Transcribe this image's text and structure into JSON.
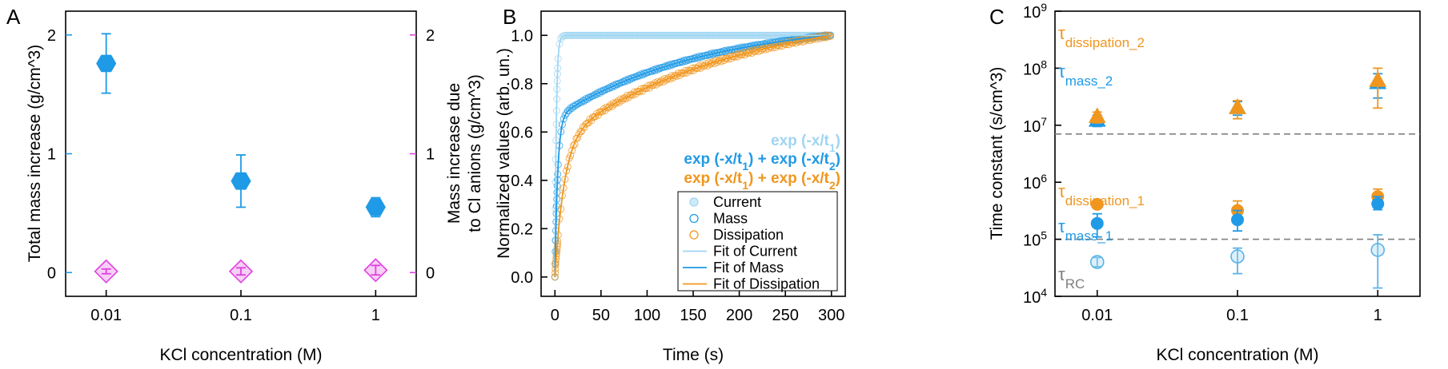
{
  "panels": {
    "a": "A",
    "b": "B",
    "c": "C"
  },
  "chart_data": [
    {
      "type": "scatter",
      "xlabel": "KCl concentration (M)",
      "ylabel": "Total mass increase (g/cm^3)",
      "ylabel_right_line1": "Mass increase due",
      "ylabel_right_line2": "to Cl anions (g/cm^3)",
      "x_scale": "log",
      "xlim": [
        0.005,
        2
      ],
      "ylim": [
        -0.2,
        2.2
      ],
      "x_ticks": [
        "0.01",
        "0.1",
        "1"
      ],
      "y_ticks": [
        "0",
        "1",
        "2"
      ],
      "y2_ticks": [
        "0",
        "1",
        "2"
      ],
      "colors": {
        "left": "#1f9ae6",
        "right": "#e040e0"
      },
      "series": [
        {
          "axis": "left",
          "marker": "hexagon",
          "x": [
            0.01,
            0.1,
            1
          ],
          "y": [
            1.76,
            0.77,
            0.55
          ],
          "err": [
            0.25,
            0.22,
            0.08
          ]
        },
        {
          "axis": "right",
          "marker": "diamond",
          "x": [
            0.01,
            0.1,
            1
          ],
          "y": [
            0.01,
            0.01,
            0.02
          ],
          "err": [
            0.02,
            0.03,
            0.04
          ]
        }
      ]
    },
    {
      "type": "scatter",
      "xlabel": "Time (s)",
      "ylabel": "Normalized values (arb. un.)",
      "xlim": [
        -15,
        315
      ],
      "ylim": [
        -0.08,
        1.1
      ],
      "x_ticks": [
        "0",
        "50",
        "100",
        "150",
        "200",
        "250",
        "300"
      ],
      "y_ticks": [
        "0.0",
        "0.2",
        "0.4",
        "0.6",
        "0.8",
        "1.0"
      ],
      "equations": [
        {
          "color": "#9fd5f2",
          "base": "exp (-x/t",
          "sub": "1",
          "tail": ")"
        },
        {
          "color": "#1f9ae6",
          "base": "exp (-x/t",
          "sub": "1",
          "mid": ") + exp (-x/t",
          "sub2": "2",
          "tail": ")"
        },
        {
          "color": "#f0961e",
          "base": "exp (-x/t",
          "sub": "1",
          "mid": ") + exp (-x/t",
          "sub2": "2",
          "tail": ")"
        }
      ],
      "legend": [
        "Current",
        "Mass",
        "Dissipation",
        "Fit of Current",
        "Fit of Mass",
        "Fit of Dissipation"
      ],
      "legend_position": "bottom-right",
      "colors": {
        "current": "#9fd5f2",
        "mass": "#1f9ae6",
        "dissipation": "#f0961e"
      },
      "series": [
        {
          "name": "Current",
          "model": {
            "a1": 1.0,
            "t1": 1.5,
            "a2": 0,
            "t2": 1
          }
        },
        {
          "name": "Mass",
          "model": {
            "a1": 0.62,
            "t1": 3,
            "a2": 0.38,
            "t2": 160
          }
        },
        {
          "name": "Dissipation",
          "model": {
            "a1": 0.5,
            "t1": 10,
            "a2": 0.5,
            "t2": 200
          }
        }
      ]
    },
    {
      "type": "scatter",
      "xlabel": "KCl concentration (M)",
      "ylabel": "Time constant (s/cm^3)",
      "x_scale": "log",
      "y_scale": "log",
      "xlim": [
        0.005,
        2
      ],
      "ylim": [
        10000,
        1000000000
      ],
      "x_ticks": [
        "0.01",
        "0.1",
        "1"
      ],
      "y_tick_exponents": [
        "4",
        "5",
        "6",
        "7",
        "8",
        "9"
      ],
      "y_tick_base": "10",
      "reference_lines": [
        100000,
        7000000
      ],
      "annotations": [
        {
          "base": "τ",
          "sub": "dissipation_2",
          "color": "#f0961e"
        },
        {
          "base": "τ",
          "sub": "mass_2",
          "color": "#1f9ae6"
        },
        {
          "base": "τ",
          "sub": "dissipation_1",
          "color": "#f0961e"
        },
        {
          "base": "τ",
          "sub": "mass_1",
          "color": "#1f9ae6"
        },
        {
          "base": "τ",
          "sub": "RC",
          "color": "#7f7f7f"
        }
      ],
      "series": [
        {
          "marker": "triangle",
          "color": "#1f9ae6",
          "x": [
            0.01,
            0.1,
            1
          ],
          "y": [
            12000000,
            20000000,
            55000000
          ],
          "lo": [
            9500000,
            15000000,
            30000000
          ],
          "hi": [
            15000000,
            26000000,
            80000000
          ]
        },
        {
          "marker": "triangle",
          "color": "#f0961e",
          "x": [
            0.01,
            0.1,
            1
          ],
          "y": [
            14000000,
            20000000,
            60000000
          ],
          "lo": [
            11000000,
            13000000,
            20000000
          ],
          "hi": [
            17000000,
            27000000,
            100000000
          ]
        },
        {
          "marker": "circle",
          "color": "#f0961e",
          "x": [
            0.01,
            0.1,
            1
          ],
          "y": [
            410000,
            320000,
            560000
          ],
          "lo": [
            380000,
            220000,
            380000
          ],
          "hi": [
            440000,
            470000,
            760000
          ]
        },
        {
          "marker": "circle",
          "color": "#1f9ae6",
          "x": [
            0.01,
            0.1,
            1
          ],
          "y": [
            190000,
            220000,
            420000
          ],
          "lo": [
            110000,
            140000,
            330000
          ],
          "hi": [
            280000,
            320000,
            560000
          ]
        },
        {
          "marker": "open-circle",
          "color": "#5bb3e8",
          "x": [
            0.01,
            0.1,
            1
          ],
          "y": [
            40000,
            50000,
            65000
          ],
          "lo": [
            33000,
            25000,
            14000
          ],
          "hi": [
            48000,
            70000,
            120000
          ]
        }
      ]
    }
  ]
}
